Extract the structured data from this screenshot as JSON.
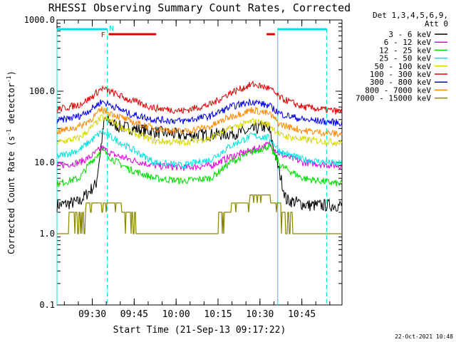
{
  "chart_data": {
    "type": "line",
    "title": "RHESSI Observing Summary Count Rates, Corrected",
    "xlabel": "Start Time (21-Sep-13 09:17:22)",
    "ylabel_main": "Corrected Count Rate (s",
    "ylabel_sup": "-1",
    "ylabel_mid": " detector",
    "ylabel_end": ")",
    "y_scale": "log",
    "ylim": [
      0.1,
      1000.0
    ],
    "xlim_minutes": [
      0,
      102
    ],
    "y_ticks": [
      {
        "v": 1000,
        "label": "1000.0"
      },
      {
        "v": 100,
        "label": "100.0"
      },
      {
        "v": 10,
        "label": "10.0"
      },
      {
        "v": 1,
        "label": "1.0"
      },
      {
        "v": 0.1,
        "label": "0.1"
      }
    ],
    "x_ticks": [
      {
        "m": 12.63,
        "label": "09:30"
      },
      {
        "m": 27.63,
        "label": "09:45"
      },
      {
        "m": 42.63,
        "label": "10:00"
      },
      {
        "m": 57.63,
        "label": "10:15"
      },
      {
        "m": 72.63,
        "label": "10:30"
      },
      {
        "m": 87.63,
        "label": "10:45"
      }
    ],
    "legend_header": [
      "Det 1,3,4,5,6,9,",
      "Att 0"
    ],
    "series": [
      {
        "name": "3 - 6 keV",
        "color": "#000000",
        "points": [
          [
            0,
            2.5
          ],
          [
            8,
            2.8
          ],
          [
            14,
            5
          ],
          [
            17,
            40
          ],
          [
            22,
            32
          ],
          [
            35,
            27
          ],
          [
            45,
            24
          ],
          [
            60,
            25
          ],
          [
            68,
            27
          ],
          [
            74,
            32
          ],
          [
            76,
            28
          ],
          [
            82,
            3
          ],
          [
            90,
            2.5
          ],
          [
            101,
            2.5
          ]
        ]
      },
      {
        "name": "6 - 12 keV",
        "color": "#e000e0",
        "points": [
          [
            0,
            9
          ],
          [
            8,
            10
          ],
          [
            12,
            12
          ],
          [
            16,
            16
          ],
          [
            20,
            13
          ],
          [
            26,
            11
          ],
          [
            35,
            9
          ],
          [
            45,
            8.5
          ],
          [
            55,
            9
          ],
          [
            62,
            12
          ],
          [
            70,
            15
          ],
          [
            76,
            18
          ],
          [
            80,
            13
          ],
          [
            88,
            10
          ],
          [
            101,
            9
          ]
        ]
      },
      {
        "name": "12 - 25 keV",
        "color": "#00dd00",
        "points": [
          [
            0,
            5
          ],
          [
            8,
            6
          ],
          [
            12,
            10
          ],
          [
            16,
            15
          ],
          [
            20,
            11
          ],
          [
            26,
            8
          ],
          [
            35,
            6
          ],
          [
            45,
            5.5
          ],
          [
            55,
            6
          ],
          [
            62,
            10
          ],
          [
            70,
            14
          ],
          [
            76,
            17
          ],
          [
            80,
            9
          ],
          [
            88,
            6
          ],
          [
            101,
            5
          ]
        ]
      },
      {
        "name": "25 - 50 keV",
        "color": "#00e0e0",
        "points": [
          [
            0,
            12
          ],
          [
            8,
            15
          ],
          [
            12,
            20
          ],
          [
            16,
            27
          ],
          [
            20,
            22
          ],
          [
            26,
            16
          ],
          [
            35,
            10
          ],
          [
            45,
            9
          ],
          [
            55,
            11
          ],
          [
            62,
            17
          ],
          [
            70,
            24
          ],
          [
            76,
            22
          ],
          [
            80,
            14
          ],
          [
            88,
            11
          ],
          [
            101,
            9.5
          ]
        ]
      },
      {
        "name": "50 - 100 keV",
        "color": "#d8d800",
        "points": [
          [
            0,
            19
          ],
          [
            8,
            22
          ],
          [
            12,
            30
          ],
          [
            16,
            43
          ],
          [
            20,
            37
          ],
          [
            26,
            27
          ],
          [
            35,
            20
          ],
          [
            45,
            19
          ],
          [
            55,
            22
          ],
          [
            62,
            30
          ],
          [
            70,
            38
          ],
          [
            76,
            34
          ],
          [
            80,
            24
          ],
          [
            88,
            21
          ],
          [
            101,
            19
          ]
        ]
      },
      {
        "name": "100 - 300 keV",
        "color": "#e00000",
        "points": [
          [
            0,
            55
          ],
          [
            8,
            65
          ],
          [
            12,
            80
          ],
          [
            16,
            110
          ],
          [
            20,
            95
          ],
          [
            26,
            75
          ],
          [
            35,
            58
          ],
          [
            45,
            53
          ],
          [
            55,
            65
          ],
          [
            62,
            95
          ],
          [
            70,
            125
          ],
          [
            76,
            110
          ],
          [
            80,
            80
          ],
          [
            88,
            60
          ],
          [
            101,
            52
          ]
        ]
      },
      {
        "name": "300 - 800 keV",
        "color": "#0000e0",
        "points": [
          [
            0,
            38
          ],
          [
            8,
            45
          ],
          [
            12,
            55
          ],
          [
            16,
            72
          ],
          [
            20,
            62
          ],
          [
            26,
            48
          ],
          [
            35,
            40
          ],
          [
            45,
            38
          ],
          [
            55,
            45
          ],
          [
            62,
            60
          ],
          [
            70,
            72
          ],
          [
            76,
            62
          ],
          [
            80,
            48
          ],
          [
            88,
            40
          ],
          [
            101,
            36
          ]
        ]
      },
      {
        "name": "800 - 7000 keV",
        "color": "#ff8800",
        "points": [
          [
            0,
            27
          ],
          [
            8,
            32
          ],
          [
            12,
            40
          ],
          [
            16,
            55
          ],
          [
            20,
            48
          ],
          [
            26,
            38
          ],
          [
            35,
            30
          ],
          [
            45,
            27
          ],
          [
            55,
            32
          ],
          [
            62,
            44
          ],
          [
            70,
            55
          ],
          [
            76,
            48
          ],
          [
            80,
            34
          ],
          [
            88,
            28
          ],
          [
            101,
            25
          ]
        ]
      },
      {
        "name": "7000 - 15000 keV",
        "color": "#888800",
        "points": [
          [
            0,
            1.0
          ],
          [
            4,
            1.0
          ],
          [
            4.5,
            2
          ],
          [
            10,
            2
          ],
          [
            10.5,
            2.7
          ],
          [
            15,
            2.7
          ],
          [
            20,
            2.7
          ],
          [
            26,
            2
          ],
          [
            30,
            1.05
          ],
          [
            50,
            1.0
          ],
          [
            56,
            1.05
          ],
          [
            60,
            2
          ],
          [
            65,
            2.8
          ],
          [
            74,
            3.5
          ],
          [
            78,
            2.8
          ],
          [
            82,
            2
          ],
          [
            86,
            1.05
          ],
          [
            101,
            1.0
          ]
        ]
      }
    ],
    "flag_bars": [
      {
        "label": "",
        "color": "#00e0e0",
        "y_level": 0,
        "spans": [
          [
            0,
            18
          ],
          [
            79,
            96.5
          ]
        ]
      },
      {
        "label": "N",
        "color": "#00e0e0",
        "y_level": 0,
        "label_at": 19.5,
        "spans": []
      },
      {
        "label": "F",
        "color": "#e00000",
        "y_level": 1,
        "label_at": 16.5,
        "spans": [
          [
            18.5,
            35.5
          ],
          [
            75,
            78
          ]
        ]
      }
    ],
    "vertical_lines": [
      {
        "m": 0,
        "style": "solid"
      },
      {
        "m": 18,
        "style": "dashed"
      },
      {
        "m": 79,
        "style": "solid"
      },
      {
        "m": 96.5,
        "style": "dashed"
      }
    ],
    "grid": false,
    "legend_position": "right"
  },
  "footer_timestamp": "22-Oct-2021 10:48"
}
